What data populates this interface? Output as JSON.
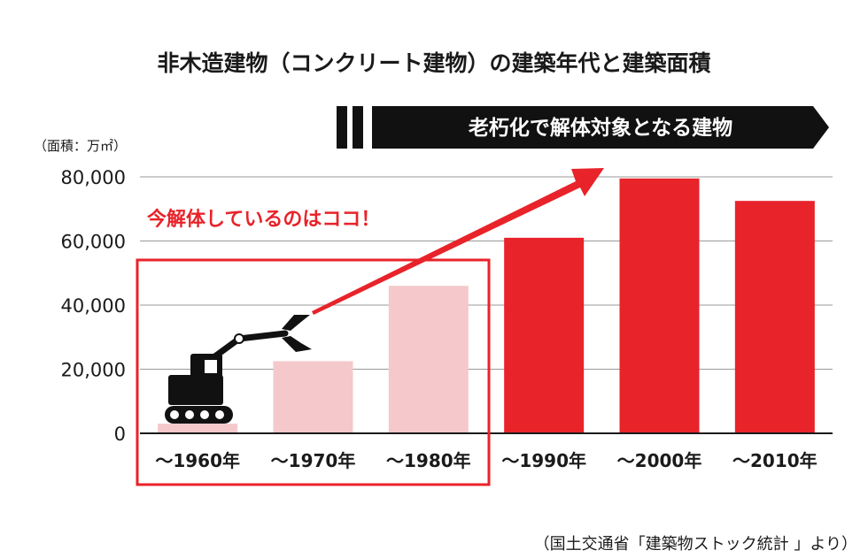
{
  "chart_data": {
    "type": "bar",
    "title": "非木造建物（コンクリート建物）の建築年代と建築面積",
    "ylabel": "（面積：万㎡）",
    "xlabel": "",
    "ylim": [
      0,
      80000
    ],
    "yticks": [
      "0",
      "20,000",
      "40,000",
      "60,000",
      "80,000"
    ],
    "ytick_values": [
      0,
      20000,
      40000,
      60000,
      80000
    ],
    "grid": true,
    "categories": [
      "〜1960年",
      "〜1970年",
      "〜1980年",
      "〜1990年",
      "〜2000年",
      "〜2010年"
    ],
    "values": [
      3000,
      22500,
      46000,
      61000,
      79500,
      72500
    ],
    "bar_colors": [
      "#f5c8cb",
      "#f5c8cb",
      "#f5c8cb",
      "#e8232a",
      "#e8232a",
      "#e8232a"
    ],
    "banner": "老朽化で解体対象となる建物",
    "highlight_label": "今解体しているのはココ！",
    "source": "（国土交通省「建築物ストック統計 」より）"
  },
  "colors": {
    "accent": "#e8232a",
    "light_bar": "#f5c8cb",
    "banner_bg": "#111111",
    "grid": "#9a9a9a"
  },
  "icons": {
    "illustration": "excavator-icon"
  }
}
